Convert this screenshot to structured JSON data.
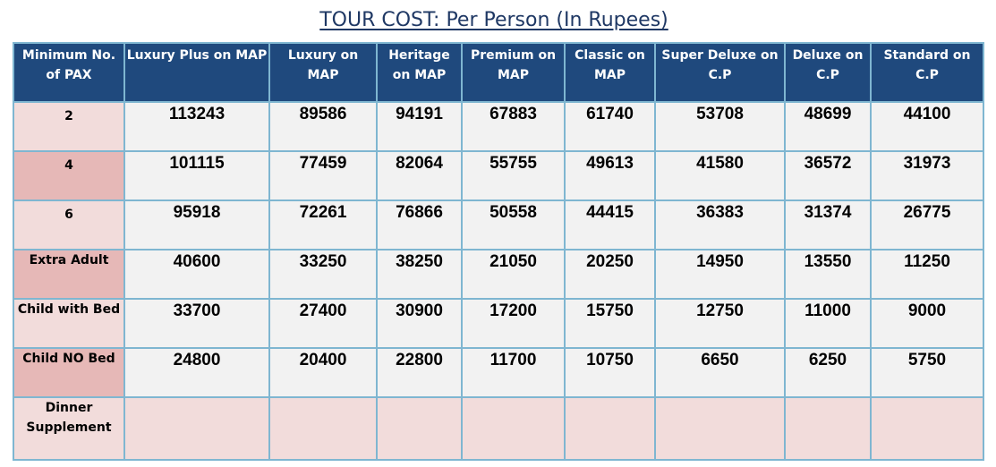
{
  "title": {
    "main": "TOUR COST: Per Person (In Rupees)"
  },
  "table": {
    "headers": [
      "Minimum No. of PAX",
      "Luxury Plus on MAP",
      "Luxury on MAP",
      "Heritage on MAP",
      "Premium on MAP",
      "Classic on MAP",
      "Super Deluxe on C.P",
      "Deluxe on C.P",
      "Standard on C.P"
    ],
    "rows": [
      {
        "label": "2",
        "values": [
          "113243",
          "89586",
          "94191",
          "67883",
          "61740",
          "53708",
          "48699",
          "44100"
        ]
      },
      {
        "label": "4",
        "values": [
          "101115",
          "77459",
          "82064",
          "55755",
          "49613",
          "41580",
          "36572",
          "31973"
        ]
      },
      {
        "label": "6",
        "values": [
          "95918",
          "72261",
          "76866",
          "50558",
          "44415",
          "36383",
          "31374",
          "26775"
        ]
      },
      {
        "label": "Extra Adult",
        "values": [
          "40600",
          "33250",
          "38250",
          "21050",
          "20250",
          "14950",
          "13550",
          "11250"
        ]
      },
      {
        "label": "Child with Bed",
        "values": [
          "33700",
          "27400",
          "30900",
          "17200",
          "15750",
          "12750",
          "11000",
          "9000"
        ]
      },
      {
        "label": "Child NO Bed",
        "values": [
          "24800",
          "20400",
          "22800",
          "11700",
          "10750",
          "6650",
          "6250",
          "5750"
        ]
      },
      {
        "label": "Dinner Supplement",
        "values": [
          "",
          "",
          "",
          "",
          "",
          "",
          "",
          ""
        ]
      }
    ]
  },
  "colors": {
    "header_bg": "#1f497d",
    "title_color": "#1f3864",
    "row_label_light": "#f2dcdb",
    "row_label_dark": "#e6b8b7",
    "cell_bg": "#f2f2f2",
    "border": "#7fb6d1"
  }
}
